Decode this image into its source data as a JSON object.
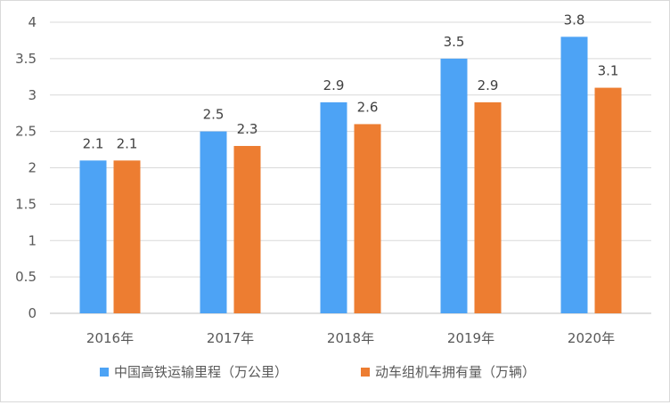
{
  "chart_data": {
    "type": "bar",
    "title": "",
    "xlabel": "",
    "ylabel": "",
    "categories": [
      "2016年",
      "2017年",
      "2018年",
      "2019年",
      "2020年"
    ],
    "series": [
      {
        "name": "中国高铁运输里程（万公里）",
        "color": "#4da3f5",
        "values": [
          2.1,
          2.5,
          2.9,
          3.5,
          3.8
        ]
      },
      {
        "name": "动车组机车拥有量（万辆）",
        "color": "#ed7d31",
        "values": [
          2.1,
          2.3,
          2.6,
          2.9,
          3.1
        ]
      }
    ],
    "ylim": [
      0,
      4
    ],
    "yticks": [
      "0",
      "0.5",
      "1",
      "1.5",
      "2",
      "2.5",
      "3",
      "3.5",
      "4"
    ],
    "data_labels": [
      [
        "2.1",
        "2.5",
        "2.9",
        "3.5",
        "3.8"
      ],
      [
        "2.1",
        "2.3",
        "2.6",
        "2.9",
        "3.1"
      ]
    ],
    "grid": true,
    "legend_position": "bottom"
  }
}
